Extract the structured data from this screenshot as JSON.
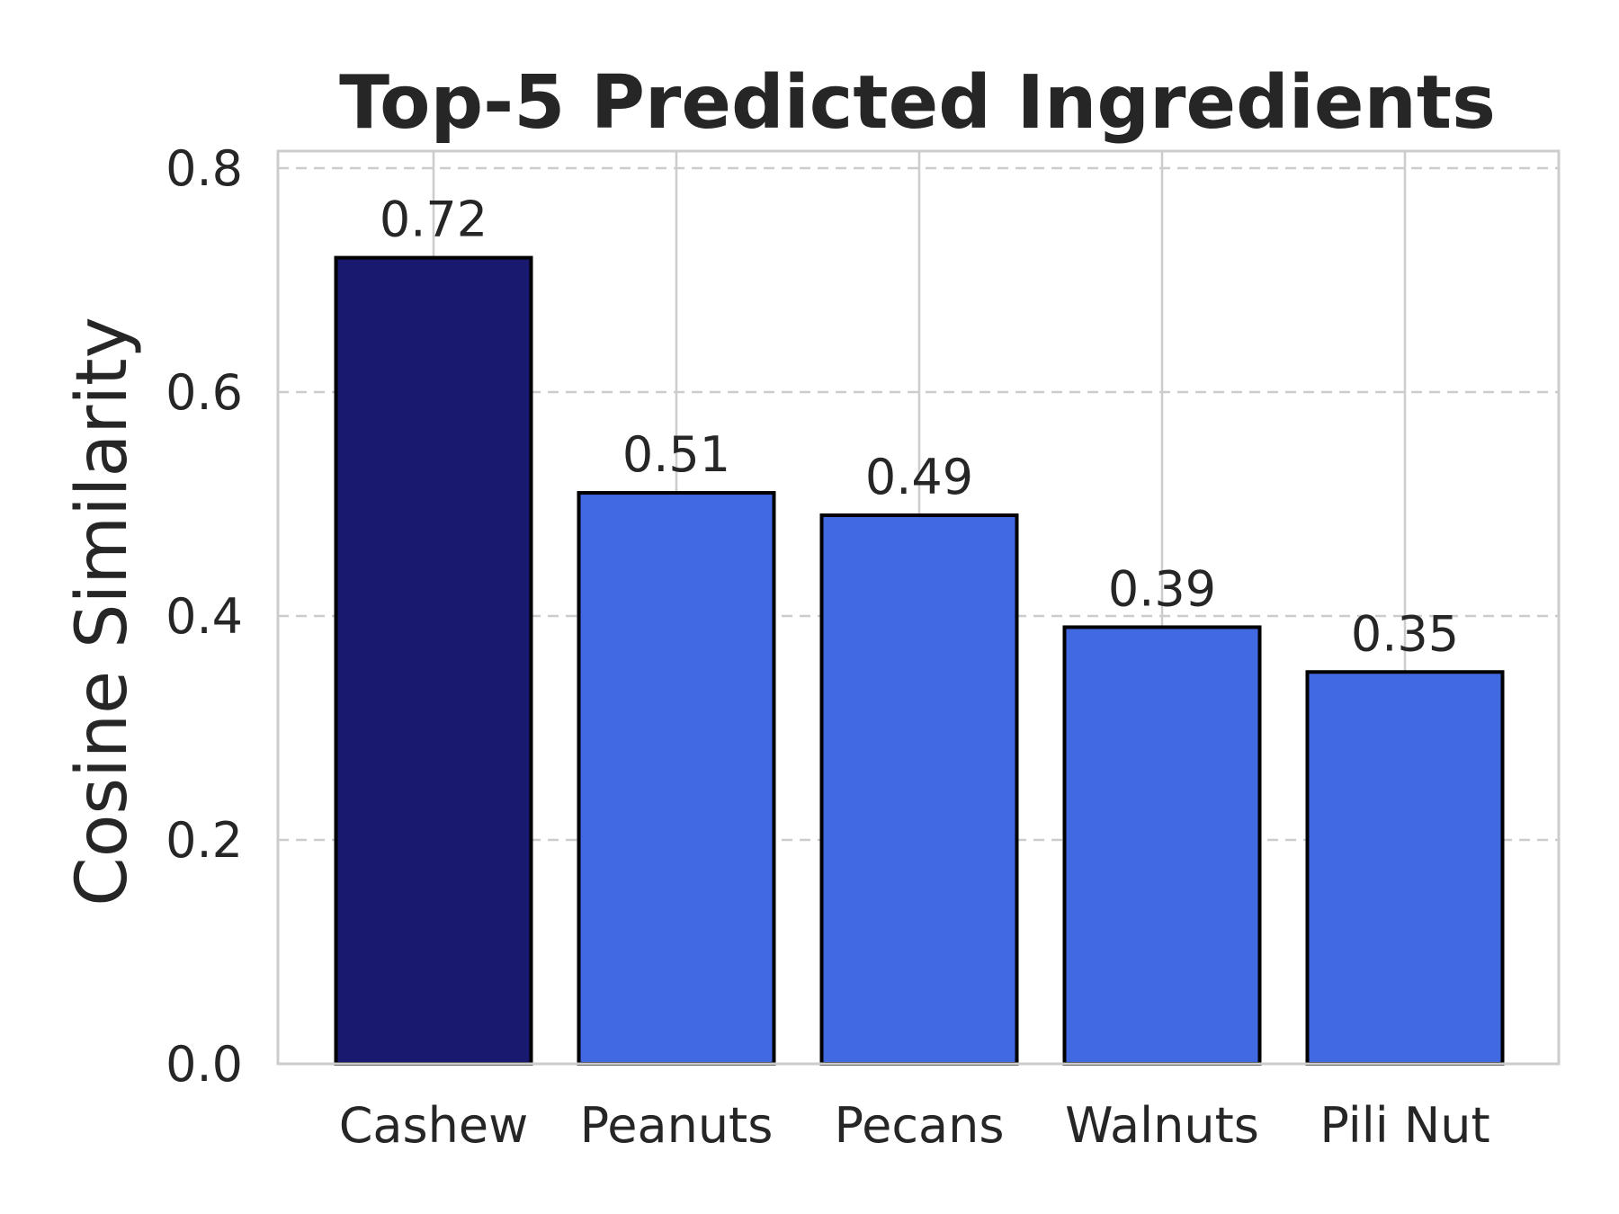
{
  "chart_data": {
    "type": "bar",
    "title": "Top-5 Predicted Ingredients",
    "xlabel": "",
    "ylabel": "Cosine Similarity",
    "categories": [
      "Cashew",
      "Peanuts",
      "Pecans",
      "Walnuts",
      "Pili Nut"
    ],
    "values": [
      0.72,
      0.51,
      0.49,
      0.39,
      0.35
    ],
    "value_labels": [
      "0.72",
      "0.51",
      "0.49",
      "0.39",
      "0.35"
    ],
    "yticks": [
      0.0,
      0.2,
      0.4,
      0.6,
      0.8
    ],
    "ytick_labels": [
      "0.0",
      "0.2",
      "0.4",
      "0.6",
      "0.8"
    ],
    "ylim": [
      0,
      0.8
    ],
    "grid": true,
    "colors": {
      "highlight": "#191970",
      "bar": "#4169e1",
      "edge": "#000000",
      "grid": "#cccccc",
      "spine": "#cccccc",
      "text": "#262626"
    }
  }
}
